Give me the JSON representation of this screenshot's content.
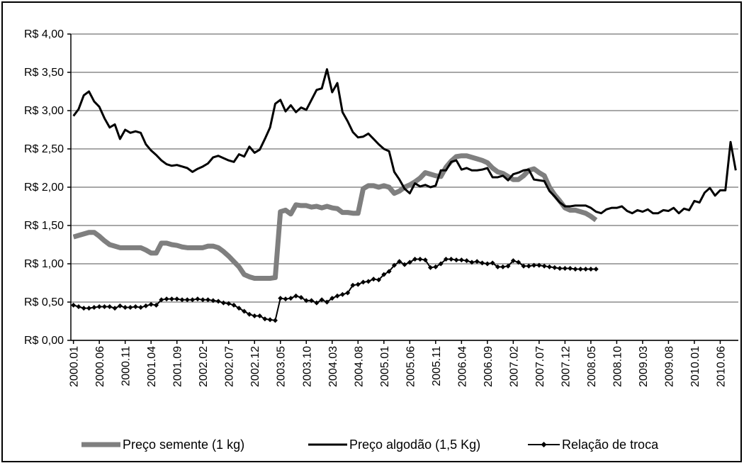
{
  "chart_data": {
    "type": "line",
    "categories": [
      "2000.01",
      null,
      null,
      null,
      null,
      "2000.06",
      null,
      null,
      null,
      null,
      "2000.11",
      null,
      null,
      null,
      null,
      "2001.04",
      null,
      null,
      null,
      null,
      "2001.09",
      null,
      null,
      null,
      null,
      "2002.02",
      null,
      null,
      null,
      null,
      "2002.07",
      null,
      null,
      null,
      null,
      "2002.12",
      null,
      null,
      null,
      null,
      "2003.05",
      null,
      null,
      null,
      null,
      "2003.10",
      null,
      null,
      null,
      null,
      "2004.03",
      null,
      null,
      null,
      null,
      "2004.08",
      null,
      null,
      null,
      null,
      "2005.01",
      null,
      null,
      null,
      null,
      "2005.06",
      null,
      null,
      null,
      null,
      "2005.11",
      null,
      null,
      null,
      null,
      "2006.04",
      null,
      null,
      null,
      null,
      "2006.09",
      null,
      null,
      null,
      null,
      "2007.02",
      null,
      null,
      null,
      null,
      "2007.07",
      null,
      null,
      null,
      null,
      "2007.12",
      null,
      null,
      null,
      null,
      "2008.05",
      null,
      null,
      null,
      null,
      "2008.10",
      null,
      null,
      null,
      null,
      "2009.03",
      null,
      null,
      null,
      null,
      "2009.08",
      null,
      null,
      null,
      null,
      "2010.01",
      null,
      null,
      null,
      null,
      "2010.06",
      null,
      null,
      null
    ],
    "series": [
      {
        "name": "Preço semente (1 kg)",
        "color": "#7f7f7f",
        "width": 7,
        "marker": false,
        "values": [
          1.35,
          1.37,
          1.39,
          1.41,
          1.41,
          1.36,
          1.3,
          1.25,
          1.23,
          1.21,
          1.21,
          1.21,
          1.21,
          1.21,
          1.18,
          1.14,
          1.14,
          1.27,
          1.27,
          1.25,
          1.24,
          1.22,
          1.21,
          1.21,
          1.21,
          1.21,
          1.23,
          1.23,
          1.21,
          1.16,
          1.1,
          1.03,
          0.96,
          0.86,
          0.83,
          0.81,
          0.81,
          0.81,
          0.81,
          0.82,
          1.68,
          1.7,
          1.65,
          1.77,
          1.76,
          1.76,
          1.74,
          1.75,
          1.73,
          1.75,
          1.73,
          1.72,
          1.67,
          1.67,
          1.66,
          1.66,
          1.98,
          2.02,
          2.02,
          2.0,
          2.02,
          2.0,
          1.92,
          1.95,
          2.0,
          2.03,
          2.07,
          2.12,
          2.19,
          2.17,
          2.15,
          2.14,
          2.26,
          2.34,
          2.4,
          2.41,
          2.41,
          2.39,
          2.37,
          2.35,
          2.32,
          2.25,
          2.2,
          2.18,
          2.14,
          2.1,
          2.1,
          2.15,
          2.22,
          2.24,
          2.19,
          2.15,
          2.0,
          1.9,
          1.82,
          1.73,
          1.7,
          1.7,
          1.68,
          1.66,
          1.62,
          1.57,
          null,
          null,
          null,
          null,
          null,
          null,
          null,
          null,
          null,
          null,
          null,
          null,
          null,
          null,
          null,
          null,
          null,
          null,
          null,
          null,
          null,
          null,
          null,
          null,
          null,
          null,
          null
        ]
      },
      {
        "name": "Preço algodão (1,5 Kg)",
        "color": "#000000",
        "width": 3,
        "marker": false,
        "values": [
          2.93,
          3.02,
          3.2,
          3.25,
          3.12,
          3.05,
          2.9,
          2.78,
          2.82,
          2.63,
          2.75,
          2.71,
          2.73,
          2.71,
          2.56,
          2.48,
          2.42,
          2.35,
          2.3,
          2.28,
          2.29,
          2.27,
          2.25,
          2.2,
          2.24,
          2.27,
          2.31,
          2.39,
          2.41,
          2.38,
          2.35,
          2.33,
          2.43,
          2.4,
          2.53,
          2.45,
          2.49,
          2.63,
          2.78,
          3.09,
          3.14,
          2.99,
          3.07,
          2.98,
          3.04,
          3.01,
          3.14,
          3.27,
          3.29,
          3.54,
          3.24,
          3.36,
          2.98,
          2.86,
          2.72,
          2.65,
          2.66,
          2.7,
          2.63,
          2.56,
          2.5,
          2.47,
          2.2,
          2.1,
          1.98,
          1.92,
          2.05,
          2.01,
          2.03,
          2.0,
          2.02,
          2.22,
          2.22,
          2.33,
          2.35,
          2.23,
          2.25,
          2.22,
          2.22,
          2.23,
          2.25,
          2.13,
          2.13,
          2.15,
          2.09,
          2.17,
          2.19,
          2.22,
          2.23,
          2.1,
          2.09,
          2.08,
          1.95,
          1.88,
          1.8,
          1.75,
          1.75,
          1.76,
          1.76,
          1.76,
          1.73,
          1.68,
          1.66,
          1.71,
          1.73,
          1.73,
          1.75,
          1.69,
          1.66,
          1.7,
          1.68,
          1.71,
          1.66,
          1.66,
          1.7,
          1.69,
          1.73,
          1.66,
          1.72,
          1.7,
          1.82,
          1.8,
          1.93,
          1.99,
          1.89,
          1.96,
          1.96,
          2.59,
          2.22
        ]
      },
      {
        "name": "Relação de troca",
        "color": "#000000",
        "width": 2,
        "marker": true,
        "values": [
          0.46,
          0.44,
          0.42,
          0.42,
          0.43,
          0.44,
          0.44,
          0.44,
          0.42,
          0.45,
          0.43,
          0.43,
          0.44,
          0.43,
          0.45,
          0.47,
          0.46,
          0.53,
          0.54,
          0.54,
          0.54,
          0.53,
          0.53,
          0.53,
          0.54,
          0.53,
          0.53,
          0.52,
          0.51,
          0.49,
          0.48,
          0.46,
          0.42,
          0.38,
          0.34,
          0.32,
          0.32,
          0.28,
          0.27,
          0.26,
          0.55,
          0.54,
          0.55,
          0.58,
          0.56,
          0.52,
          0.52,
          0.49,
          0.53,
          0.5,
          0.55,
          0.58,
          0.6,
          0.62,
          0.72,
          0.73,
          0.76,
          0.77,
          0.8,
          0.79,
          0.86,
          0.9,
          0.98,
          1.03,
          0.99,
          1.02,
          1.06,
          1.06,
          1.05,
          0.95,
          0.96,
          1.0,
          1.06,
          1.06,
          1.05,
          1.05,
          1.04,
          1.02,
          1.03,
          1.01,
          1.0,
          1.01,
          0.96,
          0.96,
          0.97,
          1.04,
          1.02,
          0.97,
          0.97,
          0.98,
          0.98,
          0.97,
          0.96,
          0.95,
          0.94,
          0.94,
          0.94,
          0.93,
          0.93,
          0.93,
          0.93,
          0.93,
          null,
          null,
          null,
          null,
          null,
          null,
          null,
          null,
          null,
          null,
          null,
          null,
          null,
          null,
          null,
          null,
          null,
          null,
          null,
          null,
          null,
          null,
          null,
          null,
          null,
          null,
          null
        ]
      }
    ],
    "ylim": [
      0,
      4
    ],
    "yticks": [
      {
        "value": 0,
        "label": "R$ 0,00"
      },
      {
        "value": 0.5,
        "label": "R$ 0,50"
      },
      {
        "value": 1,
        "label": "R$ 1,00"
      },
      {
        "value": 1.5,
        "label": "R$ 1,50"
      },
      {
        "value": 2,
        "label": "R$ 2,00"
      },
      {
        "value": 2.5,
        "label": "R$ 2,50"
      },
      {
        "value": 3,
        "label": "R$ 3,00"
      },
      {
        "value": 3.5,
        "label": "R$ 3,50"
      },
      {
        "value": 4,
        "label": "R$ 4,00"
      }
    ],
    "grid": true,
    "legend": "bottom"
  }
}
